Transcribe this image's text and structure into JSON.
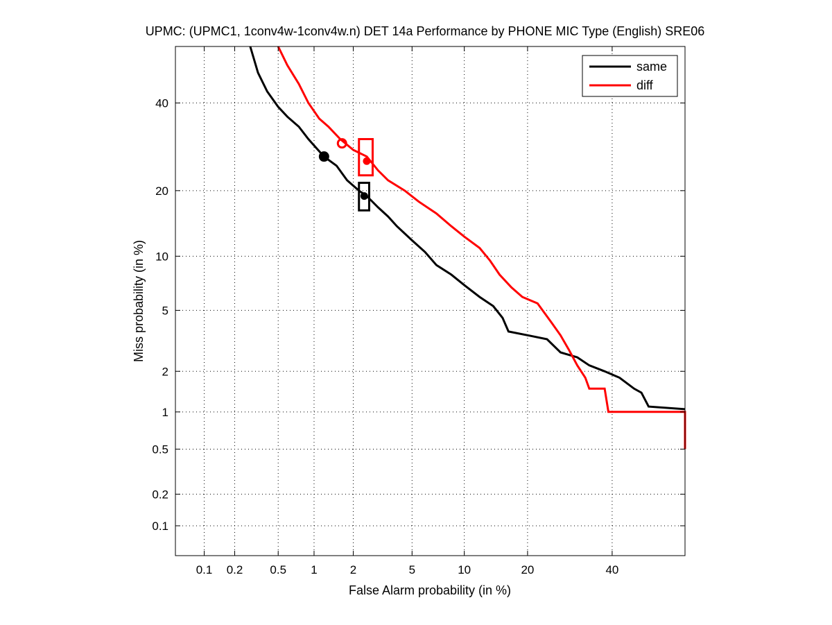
{
  "chart_data": {
    "type": "line",
    "title": "UPMC: (UPMC1, 1conv4w-1conv4w.n) DET 14a Performance by PHONE MIC Type (English) SRE06",
    "xlabel": "False Alarm probability (in %)",
    "ylabel": "Miss probability (in %)",
    "x_scale": "normal-deviate (probit)",
    "y_scale": "normal-deviate (probit)",
    "xlim": [
      0.05,
      60
    ],
    "ylim": [
      0.05,
      55
    ],
    "xticks": [
      0.1,
      0.2,
      0.5,
      1,
      2,
      5,
      10,
      20,
      40
    ],
    "xtick_labels": [
      "0.1",
      "0.2",
      "0.5",
      "1",
      "2",
      "5",
      "10",
      "20",
      "40"
    ],
    "yticks": [
      0.1,
      0.2,
      0.5,
      1,
      2,
      5,
      10,
      20,
      40
    ],
    "ytick_labels": [
      "0.1",
      "0.2",
      "0.5",
      "1",
      "2",
      "5",
      "10",
      "20",
      "40"
    ],
    "grid": "dotted",
    "legend_position": "top-right",
    "series": [
      {
        "name": "same",
        "color": "#000000",
        "points": [
          [
            0.28,
            55
          ],
          [
            0.33,
            48
          ],
          [
            0.4,
            43
          ],
          [
            0.5,
            39
          ],
          [
            0.6,
            36.5
          ],
          [
            0.75,
            34
          ],
          [
            0.9,
            31
          ],
          [
            1.0,
            29.5
          ],
          [
            1.2,
            27
          ],
          [
            1.5,
            25
          ],
          [
            1.8,
            22
          ],
          [
            2.2,
            20
          ],
          [
            2.5,
            19
          ],
          [
            3.0,
            17
          ],
          [
            3.5,
            15.5
          ],
          [
            4.0,
            14
          ],
          [
            5.0,
            12
          ],
          [
            6.0,
            10.5
          ],
          [
            7.0,
            9
          ],
          [
            8.5,
            8
          ],
          [
            10,
            7
          ],
          [
            12,
            6
          ],
          [
            14,
            5.3
          ],
          [
            15.5,
            4.5
          ],
          [
            16.5,
            3.7
          ],
          [
            20,
            3.5
          ],
          [
            24,
            3.3
          ],
          [
            27,
            2.7
          ],
          [
            31,
            2.5
          ],
          [
            34,
            2.2
          ],
          [
            38,
            2.0
          ],
          [
            42,
            1.8
          ],
          [
            46,
            1.5
          ],
          [
            48,
            1.4
          ],
          [
            50,
            1.1
          ],
          [
            60,
            1.05
          ]
        ],
        "actual_dcf_point": [
          2.4,
          19
        ],
        "actual_dcf_box": {
          "x": [
            2.2,
            2.6
          ],
          "y": [
            16.5,
            21.5
          ]
        },
        "min_dcf_point": [
          1.2,
          27
        ]
      },
      {
        "name": "diff",
        "color": "#ff0000",
        "points": [
          [
            0.5,
            55
          ],
          [
            0.6,
            50
          ],
          [
            0.75,
            45
          ],
          [
            0.9,
            40
          ],
          [
            1.1,
            36
          ],
          [
            1.3,
            34
          ],
          [
            1.6,
            31
          ],
          [
            2.0,
            28.5
          ],
          [
            2.5,
            27
          ],
          [
            3.0,
            24
          ],
          [
            3.5,
            22
          ],
          [
            4.5,
            20
          ],
          [
            5.5,
            18
          ],
          [
            7.0,
            16
          ],
          [
            8.5,
            14
          ],
          [
            10,
            12.5
          ],
          [
            12,
            11
          ],
          [
            13.5,
            9.5
          ],
          [
            15,
            8
          ],
          [
            17,
            6.8
          ],
          [
            19,
            6
          ],
          [
            22,
            5.5
          ],
          [
            25,
            4.2
          ],
          [
            27,
            3.5
          ],
          [
            29,
            2.8
          ],
          [
            31,
            2.2
          ],
          [
            33,
            1.8
          ],
          [
            34,
            1.5
          ],
          [
            38,
            1.5
          ],
          [
            39,
            1.0
          ],
          [
            60,
            1.0
          ],
          [
            60,
            0.5
          ]
        ],
        "actual_dcf_point": [
          2.5,
          26
        ],
        "actual_dcf_box": {
          "x": [
            2.2,
            2.75
          ],
          "y": [
            23,
            31
          ]
        },
        "min_dcf_point": [
          1.65,
          30
        ]
      }
    ]
  }
}
